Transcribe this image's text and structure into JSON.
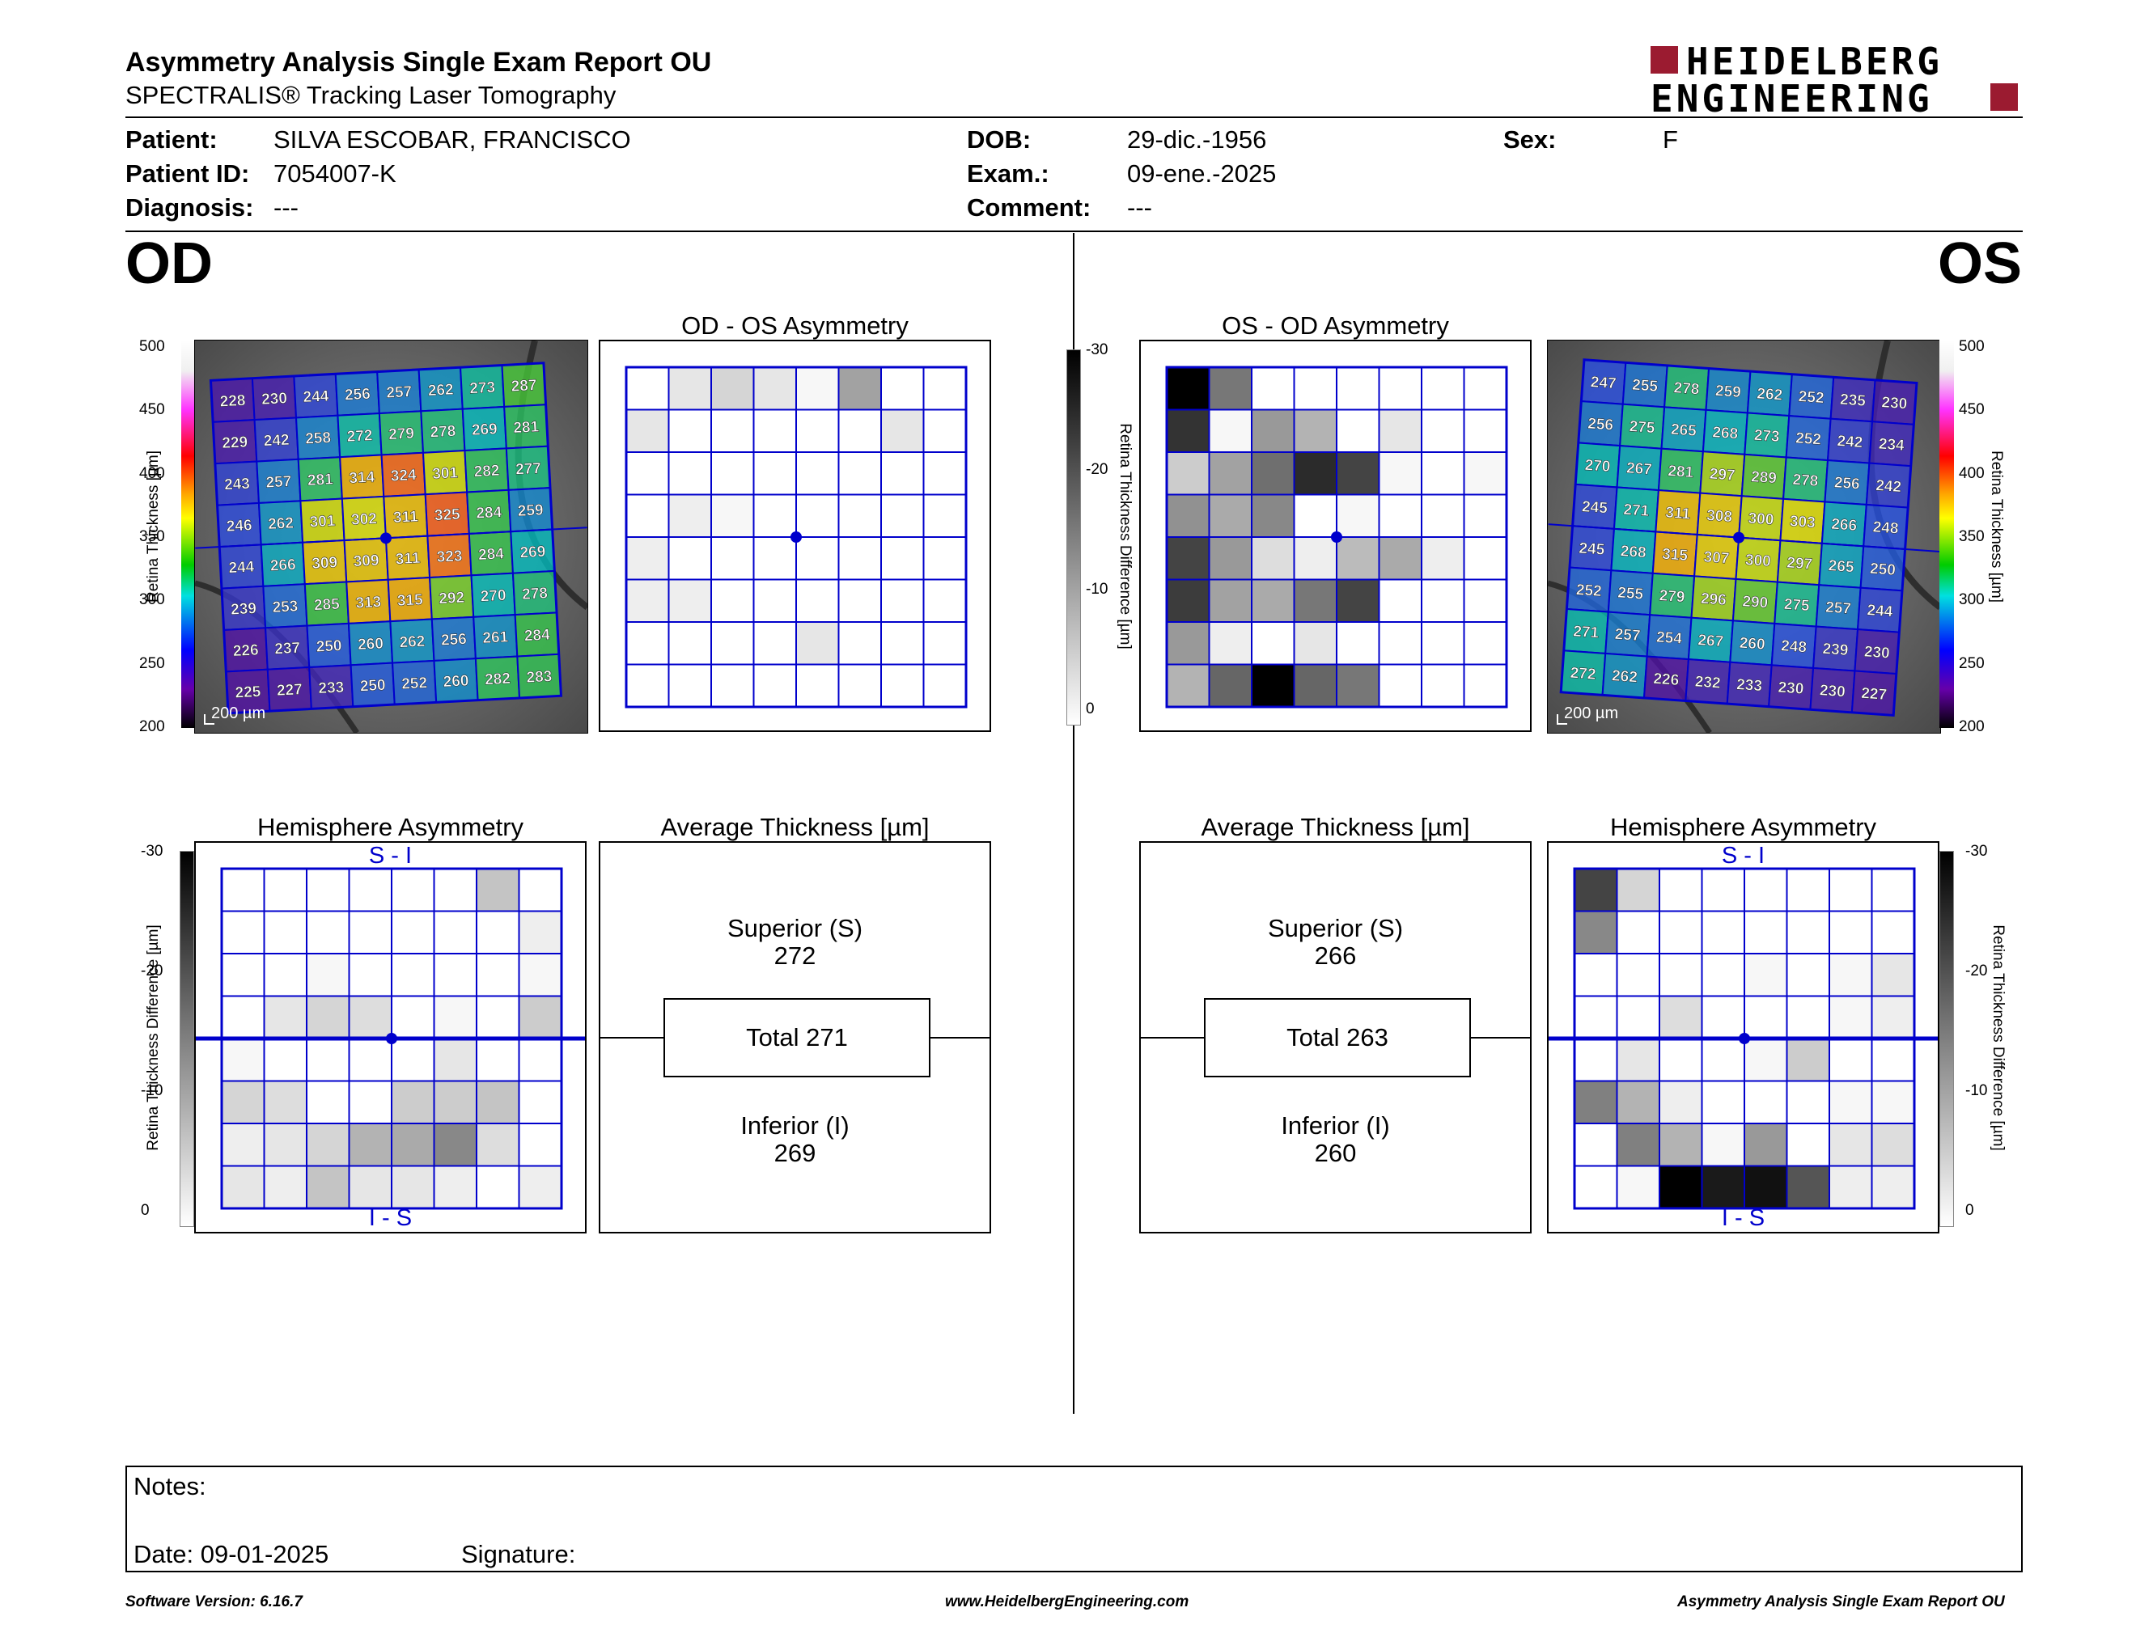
{
  "header": {
    "title": "Asymmetry Analysis Single Exam Report OU",
    "subtitle": "SPECTRALIS® Tracking Laser Tomography",
    "logo_line1": "HEIDELBERG",
    "logo_line2": "ENGINEERING",
    "brand_color": "#9b1b30"
  },
  "patient": {
    "patient_label": "Patient:",
    "patient_value": "SILVA ESCOBAR, FRANCISCO",
    "id_label": "Patient ID:",
    "id_value": "7054007-K",
    "diagnosis_label": "Diagnosis:",
    "diagnosis_value": "---",
    "dob_label": "DOB:",
    "dob_value": "29-dic.-1956",
    "exam_label": "Exam.:",
    "exam_value": "09-ene.-2025",
    "comment_label": "Comment:",
    "comment_value": "---",
    "sex_label": "Sex:",
    "sex_value": "F"
  },
  "od": {
    "label": "OD",
    "scale_bar": "200 µm",
    "thickness_axis_label": "Retina Thickness [µm]",
    "thickness_ticks": [
      "500",
      "450",
      "400",
      "350",
      "300",
      "250",
      "200"
    ],
    "grid": [
      [
        228,
        230,
        244,
        256,
        257,
        262,
        273,
        287
      ],
      [
        229,
        242,
        258,
        272,
        279,
        278,
        269,
        281
      ],
      [
        243,
        257,
        281,
        314,
        324,
        301,
        282,
        277
      ],
      [
        246,
        262,
        301,
        302,
        311,
        325,
        284,
        259
      ],
      [
        244,
        266,
        309,
        309,
        311,
        323,
        284,
        269
      ],
      [
        239,
        253,
        285,
        313,
        315,
        292,
        270,
        278
      ],
      [
        226,
        237,
        250,
        260,
        262,
        256,
        261,
        284
      ],
      [
        225,
        227,
        233,
        250,
        252,
        260,
        282,
        283
      ]
    ],
    "asym_title": "OD - OS Asymmetry",
    "asym_levels": [
      [
        0,
        3,
        5,
        3,
        1,
        11,
        0,
        0
      ],
      [
        3,
        0,
        0,
        0,
        0,
        0,
        3,
        0
      ],
      [
        0,
        0,
        0,
        0,
        0,
        0,
        0,
        0
      ],
      [
        0,
        2,
        1,
        0,
        0,
        0,
        0,
        0
      ],
      [
        2,
        0,
        0,
        0,
        0,
        0,
        0,
        0
      ],
      [
        2,
        2,
        0,
        0,
        0,
        0,
        0,
        0
      ],
      [
        0,
        0,
        0,
        0,
        3,
        0,
        0,
        0
      ],
      [
        0,
        0,
        0,
        0,
        0,
        0,
        0,
        0
      ]
    ],
    "hemi_title": "Hemisphere Asymmetry",
    "hemi_top": "S - I",
    "hemi_bottom": "I - S",
    "hemi_levels": [
      [
        0,
        0,
        0,
        0,
        0,
        0,
        7,
        0
      ],
      [
        0,
        0,
        0,
        0,
        0,
        0,
        0,
        2
      ],
      [
        0,
        0,
        1,
        0,
        0,
        0,
        0,
        1
      ],
      [
        0,
        3,
        5,
        4,
        0,
        1,
        0,
        6
      ],
      [
        1,
        0,
        0,
        0,
        0,
        3,
        0,
        0
      ],
      [
        5,
        4,
        0,
        0,
        6,
        6,
        7,
        0
      ],
      [
        2,
        3,
        5,
        9,
        10,
        14,
        4,
        0
      ],
      [
        3,
        2,
        7,
        3,
        3,
        2,
        0,
        2
      ]
    ],
    "diff_axis_label": "Retina Thickness Difference [µm]",
    "diff_ticks": [
      "-30",
      "-20",
      "-10",
      "0"
    ],
    "avg_title": "Average Thickness [µm]",
    "superior_label": "Superior (S)",
    "superior_value": "272",
    "total_label": "Total 271",
    "inferior_label": "Inferior (I)",
    "inferior_value": "269"
  },
  "os": {
    "label": "OS",
    "scale_bar": "200 µm",
    "thickness_axis_label": "Retina Thickness [µm]",
    "thickness_ticks": [
      "500",
      "450",
      "400",
      "350",
      "300",
      "250",
      "200"
    ],
    "grid": [
      [
        247,
        255,
        278,
        259,
        262,
        252,
        235,
        230
      ],
      [
        256,
        275,
        265,
        268,
        273,
        252,
        242,
        234
      ],
      [
        270,
        267,
        281,
        297,
        289,
        278,
        256,
        242
      ],
      [
        245,
        271,
        311,
        308,
        300,
        303,
        266,
        248
      ],
      [
        245,
        268,
        315,
        307,
        300,
        297,
        265,
        250
      ],
      [
        252,
        255,
        279,
        296,
        290,
        275,
        257,
        244
      ],
      [
        271,
        257,
        254,
        267,
        260,
        248,
        239,
        230
      ],
      [
        272,
        262,
        226,
        232,
        233,
        230,
        230,
        227
      ]
    ],
    "asym_title": "OS - OD Asymmetry",
    "asym_levels": [
      [
        30,
        16,
        0,
        0,
        0,
        0,
        0,
        0
      ],
      [
        24,
        1,
        12,
        9,
        0,
        3,
        0,
        0
      ],
      [
        6,
        11,
        17,
        25,
        22,
        1,
        0,
        1
      ],
      [
        13,
        10,
        14,
        0,
        1,
        0,
        0,
        0
      ],
      [
        22,
        12,
        4,
        2,
        8,
        10,
        2,
        0
      ],
      [
        23,
        11,
        10,
        16,
        22,
        0,
        0,
        0
      ],
      [
        12,
        2,
        0,
        3,
        0,
        0,
        0,
        0
      ],
      [
        9,
        18,
        30,
        18,
        16,
        0,
        0,
        0
      ]
    ],
    "hemi_title": "Hemisphere Asymmetry",
    "hemi_top": "S - I",
    "hemi_bottom": "I - S",
    "hemi_levels": [
      [
        22,
        5,
        0,
        0,
        0,
        0,
        0,
        0
      ],
      [
        14,
        0,
        0,
        0,
        0,
        0,
        0,
        0
      ],
      [
        0,
        0,
        0,
        0,
        1,
        0,
        1,
        3
      ],
      [
        0,
        0,
        4,
        0,
        0,
        0,
        1,
        2
      ],
      [
        0,
        3,
        0,
        0,
        1,
        6,
        0,
        0
      ],
      [
        15,
        9,
        2,
        0,
        0,
        0,
        1,
        1
      ],
      [
        0,
        15,
        9,
        1,
        12,
        0,
        3,
        4
      ],
      [
        0,
        1,
        30,
        27,
        28,
        20,
        2,
        2
      ]
    ],
    "diff_axis_label": "Retina Thickness Difference [µm]",
    "diff_ticks": [
      "-30",
      "-20",
      "-10",
      "0"
    ],
    "avg_title": "Average Thickness [µm]",
    "superior_label": "Superior (S)",
    "superior_value": "266",
    "total_label": "Total 263",
    "inferior_label": "Inferior (I)",
    "inferior_value": "260"
  },
  "notes": {
    "notes_label": "Notes:",
    "date_label": "Date: 09-01-2025",
    "signature_label": "Signature:"
  },
  "footer": {
    "version": "Software Version: 6.16.7",
    "website": "www.HeidelbergEngineering.com",
    "report": "Asymmetry Analysis Single Exam Report OU"
  },
  "colors": {
    "grid_line": "#0000cc",
    "border": "#000000"
  }
}
